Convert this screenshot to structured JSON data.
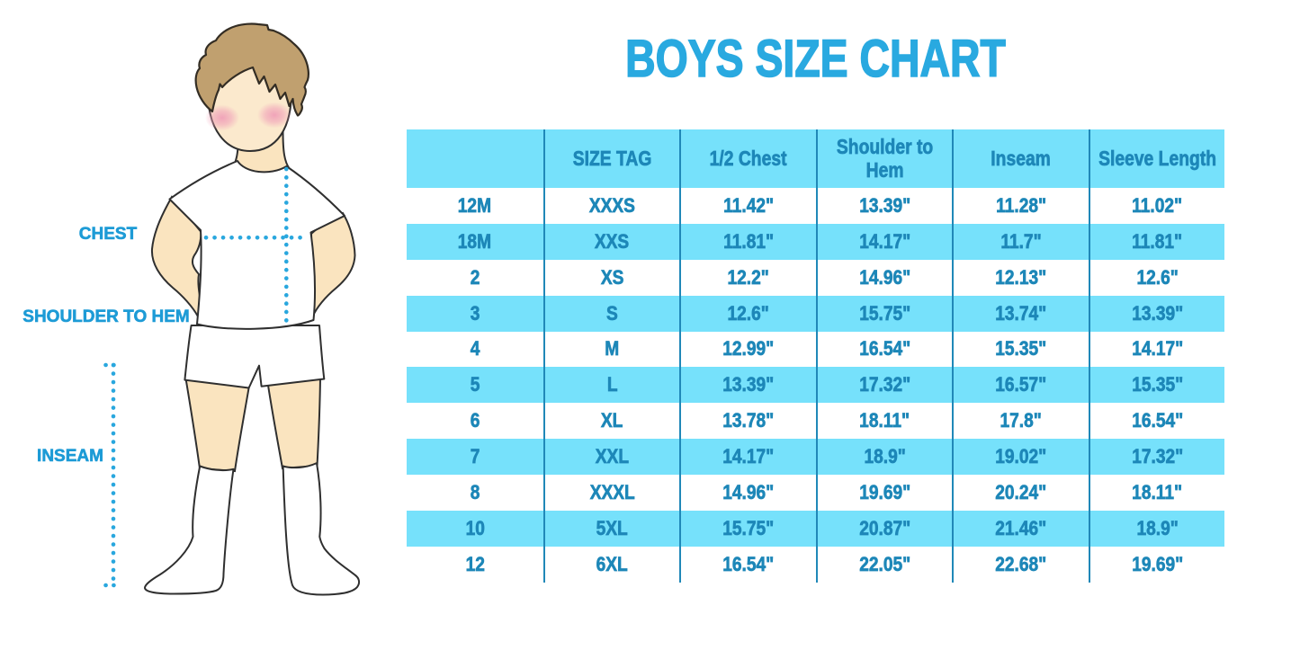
{
  "page": {
    "title": "BOYS SIZE CHART",
    "background": "#ffffff"
  },
  "colors": {
    "title_text": "#29A9E0",
    "table_text": "#1D87B8",
    "table_stripe": "#76E1FB",
    "table_divider": "#2088B8",
    "measure_label_text": "#1D9BD6",
    "dotted_line": "#29A7DE",
    "skin": "#FAE4BF",
    "face": "#FBE9CD",
    "hair": "#C0A06F",
    "blush": "#F0A0B8",
    "outline": "#2F2F2F"
  },
  "figure": {
    "description": "boy-illustration",
    "labels": {
      "chest": "CHEST",
      "shoulder_to_hem": "SHOULDER TO HEM",
      "inseam": "INSEAM"
    }
  },
  "chart_data": {
    "type": "table",
    "title": "BOYS SIZE CHART",
    "columns": [
      "",
      "SIZE TAG",
      "1/2 Chest",
      "Shoulder to Hem",
      "Inseam",
      "Sleeve Length"
    ],
    "rows": [
      [
        "12M",
        "XXXS",
        "11.42\"",
        "13.39\"",
        "11.28\"",
        "11.02\""
      ],
      [
        "18M",
        "XXS",
        "11.81\"",
        "14.17\"",
        "11.7\"",
        "11.81\""
      ],
      [
        "2",
        "XS",
        "12.2\"",
        "14.96\"",
        "12.13\"",
        "12.6\""
      ],
      [
        "3",
        "S",
        "12.6\"",
        "15.75\"",
        "13.74\"",
        "13.39\""
      ],
      [
        "4",
        "M",
        "12.99\"",
        "16.54\"",
        "15.35\"",
        "14.17\""
      ],
      [
        "5",
        "L",
        "13.39\"",
        "17.32\"",
        "16.57\"",
        "15.35\""
      ],
      [
        "6",
        "XL",
        "13.78\"",
        "18.11\"",
        "17.8\"",
        "16.54\""
      ],
      [
        "7",
        "XXL",
        "14.17\"",
        "18.9\"",
        "19.02\"",
        "17.32\""
      ],
      [
        "8",
        "XXXL",
        "14.96\"",
        "19.69\"",
        "20.24\"",
        "18.11\""
      ],
      [
        "10",
        "5XL",
        "15.75\"",
        "20.87\"",
        "21.46\"",
        "18.9\""
      ],
      [
        "12",
        "6XL",
        "16.54\"",
        "22.05\"",
        "22.68\"",
        "19.69\""
      ]
    ],
    "stripe_rows": [
      1,
      3,
      5,
      7,
      9
    ],
    "header_background": "#76E1FB"
  }
}
